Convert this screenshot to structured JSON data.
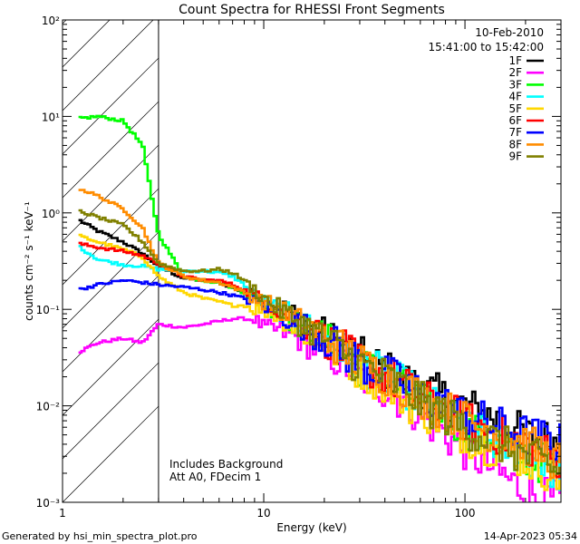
{
  "chart_data": {
    "type": "line",
    "title": "Count Spectra for RHESSI Front Segments",
    "xlabel": "Energy (keV)",
    "ylabel": "counts cm⁻² s⁻¹ keV⁻¹",
    "xscale": "log",
    "yscale": "log",
    "xlim": [
      1,
      300
    ],
    "ylim": [
      0.001,
      100
    ],
    "x_ticks": [
      {
        "value": 1,
        "label": "1"
      },
      {
        "value": 10,
        "label": "10"
      },
      {
        "value": 100,
        "label": "100"
      }
    ],
    "y_ticks": [
      {
        "value": 0.001,
        "label": "10⁻³"
      },
      {
        "value": 0.01,
        "label": "10⁻²"
      },
      {
        "value": 0.1,
        "label": "10⁻¹"
      },
      {
        "value": 1,
        "label": "10⁰"
      },
      {
        "value": 10,
        "label": "10¹"
      },
      {
        "value": 100,
        "label": "10²"
      }
    ],
    "hatched_region": {
      "x_from": 1,
      "x_to": 3
    },
    "legend_header": [
      "10-Feb-2010",
      "15:41:00 to 15:42:00"
    ],
    "legend_position": "top-right",
    "annotation": [
      "Includes Background",
      "Att A0, FDecim 1"
    ],
    "energy_points": [
      1.2,
      1.5,
      2,
      2.5,
      3,
      4,
      5,
      6,
      7,
      8,
      9,
      10,
      12,
      15,
      20,
      25,
      30,
      40,
      50,
      60,
      80,
      100,
      150,
      200,
      250,
      300
    ],
    "series": [
      {
        "name": "1F",
        "color": "#000000",
        "values": [
          0.85,
          0.65,
          0.5,
          0.38,
          0.28,
          0.21,
          0.2,
          0.19,
          0.17,
          0.15,
          0.14,
          0.13,
          0.11,
          0.08,
          0.055,
          0.04,
          0.032,
          0.024,
          0.018,
          0.016,
          0.012,
          0.01,
          0.007,
          0.005,
          0.0045,
          0.004
        ]
      },
      {
        "name": "2F",
        "color": "#ff00ff",
        "values": [
          0.036,
          0.045,
          0.05,
          0.045,
          0.07,
          0.065,
          0.07,
          0.075,
          0.08,
          0.08,
          0.08,
          0.065,
          0.06,
          0.05,
          0.035,
          0.028,
          0.02,
          0.015,
          0.011,
          0.008,
          0.005,
          0.0035,
          0.002,
          0.0013,
          0.0011,
          0.001
        ]
      },
      {
        "name": "3F",
        "color": "#00ff00",
        "values": [
          9.5,
          10.0,
          9.0,
          5.0,
          0.6,
          0.22,
          0.2,
          0.19,
          0.17,
          0.15,
          0.13,
          0.12,
          0.09,
          0.07,
          0.05,
          0.035,
          0.026,
          0.02,
          0.015,
          0.011,
          0.008,
          0.006,
          0.004,
          0.003,
          0.0025,
          0.002
        ]
      },
      {
        "name": "4F",
        "color": "#00ffff",
        "values": [
          0.45,
          0.33,
          0.29,
          0.28,
          0.26,
          0.25,
          0.25,
          0.24,
          0.22,
          0.18,
          0.14,
          0.12,
          0.1,
          0.075,
          0.05,
          0.036,
          0.028,
          0.02,
          0.016,
          0.012,
          0.008,
          0.006,
          0.004,
          0.003,
          0.0025,
          0.002
        ]
      },
      {
        "name": "5F",
        "color": "#ffd700",
        "values": [
          0.58,
          0.5,
          0.42,
          0.35,
          0.22,
          0.15,
          0.13,
          0.12,
          0.11,
          0.11,
          0.1,
          0.1,
          0.085,
          0.06,
          0.045,
          0.032,
          0.024,
          0.017,
          0.012,
          0.009,
          0.007,
          0.005,
          0.0035,
          0.0028,
          0.0022,
          0.0018
        ]
      },
      {
        "name": "6F",
        "color": "#ff0000",
        "values": [
          0.48,
          0.44,
          0.4,
          0.36,
          0.3,
          0.22,
          0.2,
          0.2,
          0.18,
          0.16,
          0.14,
          0.12,
          0.1,
          0.075,
          0.05,
          0.037,
          0.028,
          0.021,
          0.016,
          0.012,
          0.009,
          0.007,
          0.005,
          0.004,
          0.0032,
          0.0028
        ]
      },
      {
        "name": "7F",
        "color": "#0000ff",
        "values": [
          0.16,
          0.18,
          0.2,
          0.19,
          0.18,
          0.17,
          0.16,
          0.15,
          0.14,
          0.13,
          0.12,
          0.11,
          0.09,
          0.07,
          0.05,
          0.037,
          0.028,
          0.021,
          0.017,
          0.013,
          0.01,
          0.008,
          0.006,
          0.005,
          0.0045,
          0.004
        ]
      },
      {
        "name": "8F",
        "color": "#ff8c00",
        "values": [
          1.8,
          1.5,
          1.1,
          0.7,
          0.3,
          0.22,
          0.2,
          0.19,
          0.17,
          0.15,
          0.13,
          0.12,
          0.1,
          0.075,
          0.052,
          0.038,
          0.028,
          0.021,
          0.016,
          0.012,
          0.009,
          0.007,
          0.005,
          0.004,
          0.0032,
          0.0025
        ]
      },
      {
        "name": "9F",
        "color": "#808000",
        "values": [
          1.05,
          0.9,
          0.75,
          0.5,
          0.3,
          0.25,
          0.25,
          0.26,
          0.24,
          0.2,
          0.16,
          0.13,
          0.1,
          0.075,
          0.05,
          0.036,
          0.027,
          0.02,
          0.015,
          0.011,
          0.008,
          0.006,
          0.004,
          0.003,
          0.0025,
          0.002
        ]
      }
    ]
  },
  "footer": {
    "generated_by": "Generated by hsi_min_spectra_plot.pro",
    "timestamp": "14-Apr-2023 05:34"
  }
}
